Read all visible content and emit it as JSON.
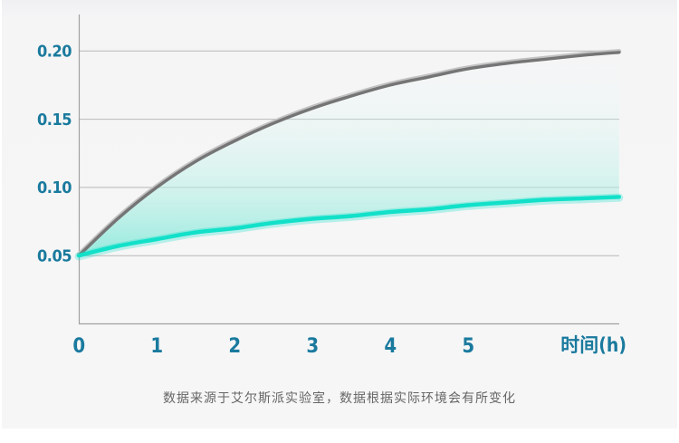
{
  "page": {
    "background_color": "#f5f5f6",
    "caption": "数据来源于艾尔斯派实验室，数据根据实际环境会有所变化",
    "caption_color": "#666666"
  },
  "colors": {
    "axis_label": "#1a7a9e",
    "grid_line": "#a4a4a4",
    "curve_gray": "#757575",
    "curve_teal": "#12e0c9",
    "area_fill_teal": "#7fe8d8"
  },
  "chart_data": {
    "type": "line",
    "title": "",
    "xlabel": "时间(h)",
    "ylabel": "",
    "x_tick_labels": [
      "0",
      "1",
      "2",
      "3",
      "4",
      "5"
    ],
    "y_tick_labels": [
      "0.20",
      "0.15",
      "0.10",
      "0.05"
    ],
    "y_tick_values": [
      0.2,
      0.15,
      0.1,
      0.05
    ],
    "xlim": [
      0,
      6.94
    ],
    "ylim": [
      0,
      0.235
    ],
    "grid": "horizontal-only",
    "legend": "none",
    "fill_between_series": true,
    "x": [
      0,
      0.5,
      1,
      1.5,
      2,
      2.5,
      3,
      3.5,
      4,
      4.5,
      5,
      5.5,
      6,
      6.5,
      6.94
    ],
    "series": [
      {
        "name": "upper-gray-curve",
        "color": "#757575",
        "values": [
          0.05,
          0.077,
          0.1,
          0.119,
          0.134,
          0.147,
          0.158,
          0.167,
          0.175,
          0.181,
          0.187,
          0.191,
          0.194,
          0.197,
          0.199
        ]
      },
      {
        "name": "lower-teal-curve",
        "color": "#12e0c9",
        "values": [
          0.05,
          0.057,
          0.062,
          0.067,
          0.07,
          0.074,
          0.077,
          0.079,
          0.082,
          0.084,
          0.087,
          0.089,
          0.091,
          0.092,
          0.093
        ]
      }
    ]
  }
}
